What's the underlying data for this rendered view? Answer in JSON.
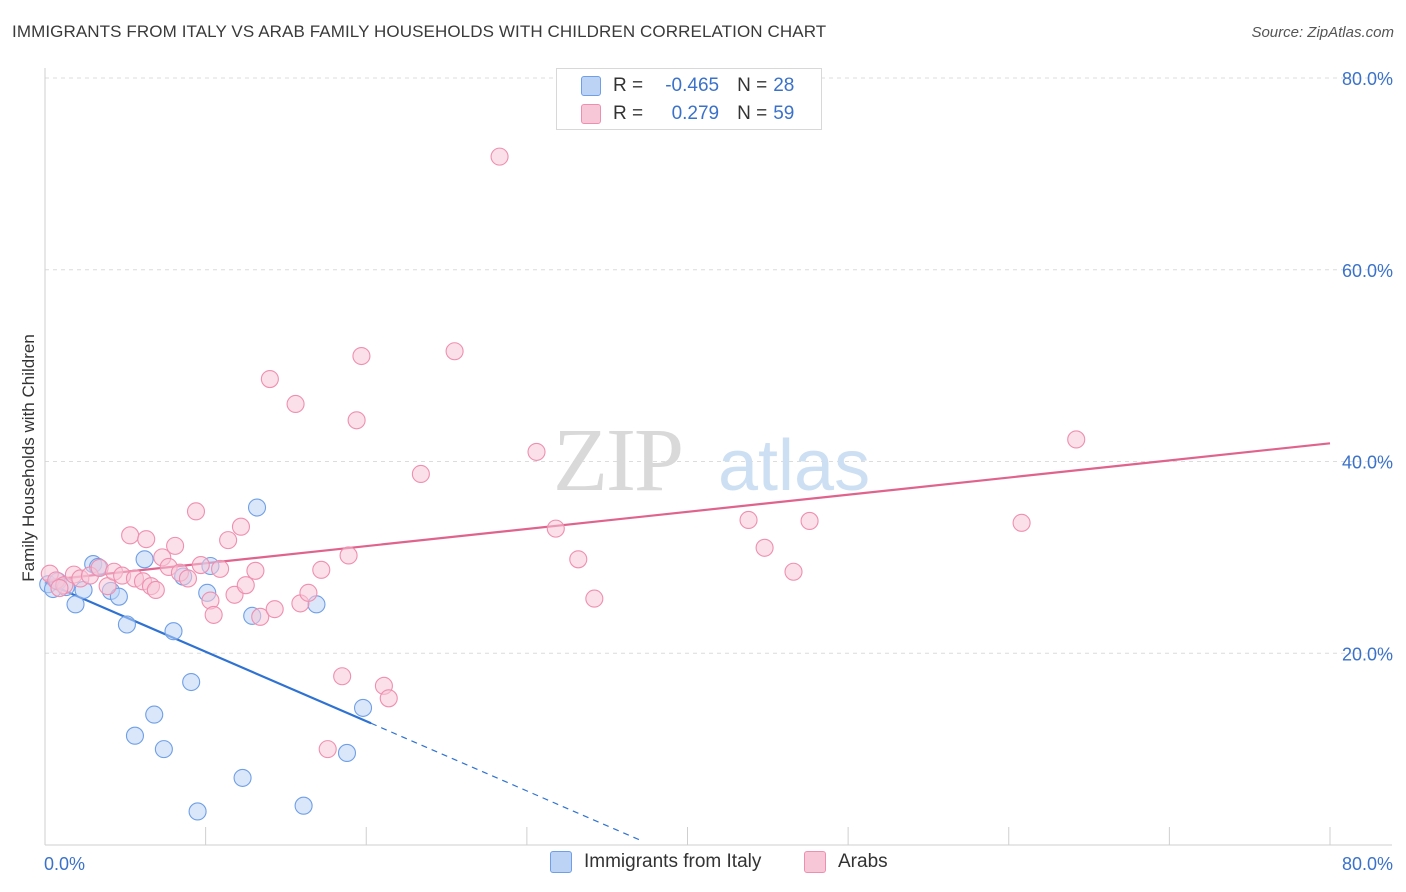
{
  "title": "IMMIGRANTS FROM ITALY VS ARAB FAMILY HOUSEHOLDS WITH CHILDREN CORRELATION CHART",
  "source": "Source: ZipAtlas.com",
  "watermark": {
    "zip": "ZIP",
    "atlas": "atlas"
  },
  "legend": {
    "rows": [
      {
        "r_label": "R =",
        "r_value": "-0.465",
        "n_label": "N =",
        "n_value": "28",
        "color": "#6f9fe6"
      },
      {
        "r_label": "R =",
        "r_value": "0.279",
        "n_label": "N =",
        "n_value": "59",
        "color": "#ef8fb0"
      }
    ]
  },
  "chart_data": {
    "type": "scatter",
    "xlabel": "",
    "ylabel": "Family Households with Children",
    "xlim": [
      0,
      80
    ],
    "ylim": [
      0,
      80
    ],
    "x_tick_labels": [
      "0.0%",
      "80.0%"
    ],
    "y_tick_labels": [
      "20.0%",
      "40.0%",
      "60.0%",
      "80.0%"
    ],
    "y_ticks": [
      20,
      40,
      60,
      80
    ],
    "grid": true,
    "series": [
      {
        "name": "Immigrants from Italy",
        "color": "#6f9fe6",
        "fill": "#bcd3f5",
        "line_color": "#2f72d2",
        "trend": {
          "x0": 0,
          "y0": 27.4,
          "x1": 20.3,
          "y1": 12.7,
          "dash_to_x": 37.2,
          "dash_to_y": 0.4
        },
        "points": [
          [
            0.2,
            27.2
          ],
          [
            0.5,
            26.7
          ],
          [
            0.8,
            27.5
          ],
          [
            1.3,
            26.9
          ],
          [
            1.9,
            25.1
          ],
          [
            2.4,
            26.6
          ],
          [
            3.0,
            29.3
          ],
          [
            3.3,
            29.0
          ],
          [
            4.1,
            26.5
          ],
          [
            4.6,
            25.9
          ],
          [
            5.1,
            23.0
          ],
          [
            5.6,
            11.4
          ],
          [
            6.2,
            29.8
          ],
          [
            6.8,
            13.6
          ],
          [
            7.4,
            10.0
          ],
          [
            8.0,
            22.3
          ],
          [
            8.6,
            28.0
          ],
          [
            9.1,
            17.0
          ],
          [
            9.5,
            3.5
          ],
          [
            10.1,
            26.3
          ],
          [
            10.3,
            29.1
          ],
          [
            12.3,
            7.0
          ],
          [
            12.9,
            23.9
          ],
          [
            13.2,
            35.2
          ],
          [
            16.1,
            4.1
          ],
          [
            16.9,
            25.1
          ],
          [
            18.8,
            9.6
          ],
          [
            19.8,
            14.3
          ]
        ]
      },
      {
        "name": "Arabs",
        "color": "#ef8fb0",
        "fill": "#f8c7d7",
        "line_color": "#e0638d",
        "trend": {
          "x0": 0,
          "y0": 27.6,
          "x1": 80,
          "y1": 41.9
        },
        "points": [
          [
            0.3,
            28.3
          ],
          [
            0.7,
            27.6
          ],
          [
            1.2,
            27.1
          ],
          [
            1.8,
            28.2
          ],
          [
            2.2,
            27.8
          ],
          [
            2.8,
            28.1
          ],
          [
            3.4,
            28.9
          ],
          [
            3.9,
            27.0
          ],
          [
            4.3,
            28.5
          ],
          [
            4.8,
            28.1
          ],
          [
            5.3,
            32.3
          ],
          [
            5.6,
            27.8
          ],
          [
            6.1,
            27.5
          ],
          [
            6.3,
            31.9
          ],
          [
            6.6,
            27.0
          ],
          [
            6.9,
            26.6
          ],
          [
            7.3,
            30.0
          ],
          [
            7.7,
            29.0
          ],
          [
            8.1,
            31.2
          ],
          [
            8.4,
            28.4
          ],
          [
            8.9,
            27.8
          ],
          [
            9.4,
            34.8
          ],
          [
            9.7,
            29.2
          ],
          [
            10.3,
            25.5
          ],
          [
            10.5,
            24.0
          ],
          [
            10.9,
            28.8
          ],
          [
            11.4,
            31.8
          ],
          [
            11.8,
            26.1
          ],
          [
            12.2,
            33.2
          ],
          [
            12.5,
            27.1
          ],
          [
            13.1,
            28.6
          ],
          [
            13.4,
            23.8
          ],
          [
            14.0,
            48.6
          ],
          [
            14.3,
            24.6
          ],
          [
            15.6,
            46.0
          ],
          [
            15.9,
            25.2
          ],
          [
            16.4,
            26.3
          ],
          [
            17.2,
            28.7
          ],
          [
            17.6,
            10.0
          ],
          [
            18.5,
            17.6
          ],
          [
            18.9,
            30.2
          ],
          [
            19.4,
            44.3
          ],
          [
            19.7,
            51.0
          ],
          [
            21.1,
            16.6
          ],
          [
            21.4,
            15.3
          ],
          [
            23.4,
            38.7
          ],
          [
            25.5,
            51.5
          ],
          [
            28.3,
            71.8
          ],
          [
            30.6,
            41.0
          ],
          [
            31.8,
            33.0
          ],
          [
            33.2,
            29.8
          ],
          [
            34.2,
            25.7
          ],
          [
            43.8,
            33.9
          ],
          [
            44.8,
            31.0
          ],
          [
            46.6,
            28.5
          ],
          [
            47.6,
            33.8
          ],
          [
            60.8,
            33.6
          ],
          [
            64.2,
            42.3
          ],
          [
            0.9,
            26.8
          ]
        ]
      }
    ]
  },
  "bottom_legend": [
    {
      "label": "Immigrants from Italy",
      "color": "#6f9fe6"
    },
    {
      "label": "Arabs",
      "color": "#ef8fb0"
    }
  ]
}
